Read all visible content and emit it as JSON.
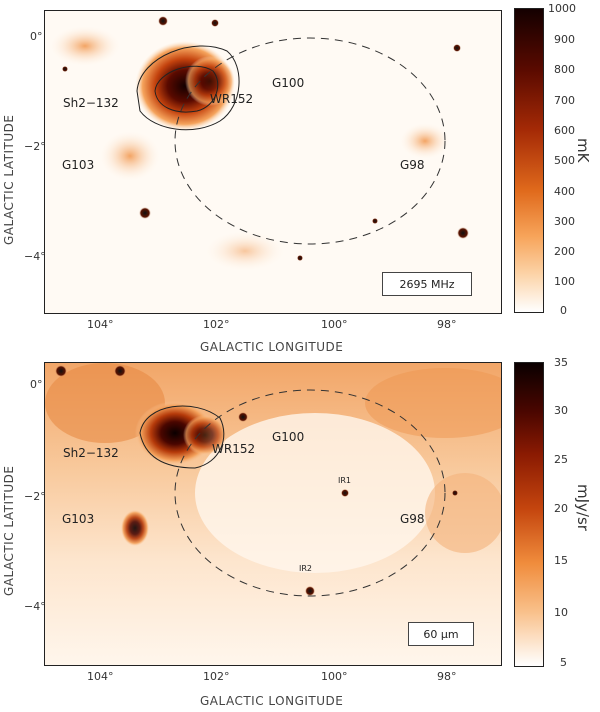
{
  "panel1": {
    "band_label": "2695 MHz",
    "x_axis_label": "GALACTIC LONGITUDE",
    "y_axis_label": "GALACTIC LATITUDE",
    "x_ticks": [
      "104°",
      "102°",
      "100°",
      "98°"
    ],
    "y_ticks": [
      "0°",
      "−2°",
      "−4°"
    ],
    "colorbar": {
      "unit": "mK",
      "ticks": [
        "1000",
        "900",
        "800",
        "700",
        "600",
        "500",
        "400",
        "300",
        "200",
        "100",
        "0"
      ]
    },
    "objects": [
      {
        "text": "Sh2−132"
      },
      {
        "text": "WR152"
      },
      {
        "text": "G100"
      },
      {
        "text": "G103"
      },
      {
        "text": "G98"
      }
    ]
  },
  "panel2": {
    "band_label": "60 μm",
    "x_axis_label": "GALACTIC LONGITUDE",
    "y_axis_label": "GALACTIC LATITUDE",
    "x_ticks": [
      "104°",
      "102°",
      "100°",
      "98°"
    ],
    "y_ticks": [
      "0°",
      "−2°",
      "−4°"
    ],
    "colorbar": {
      "unit": "mJy/sr",
      "ticks": [
        "35",
        "30",
        "25",
        "20",
        "15",
        "10",
        "5"
      ]
    },
    "objects": [
      {
        "text": "Sh2−132"
      },
      {
        "text": "WR152"
      },
      {
        "text": "G100"
      },
      {
        "text": "G103"
      },
      {
        "text": "G98"
      },
      {
        "text": "IR1"
      },
      {
        "text": "IR2"
      }
    ]
  },
  "colors": {
    "dark": "#1a0000",
    "deep_red": "#7a1000",
    "orange": "#e8731a",
    "light": "#fde7cf",
    "white": "#ffffff"
  }
}
